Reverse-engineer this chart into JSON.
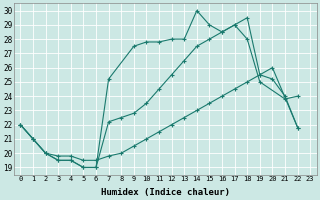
{
  "xlabel": "Humidex (Indice chaleur)",
  "bg_color": "#cce8e4",
  "grid_color": "#b0d8d0",
  "line_color": "#1a7a6e",
  "xlim": [
    -0.5,
    23.5
  ],
  "ylim": [
    18.5,
    30.5
  ],
  "yticks": [
    19,
    20,
    21,
    22,
    23,
    24,
    25,
    26,
    27,
    28,
    29,
    30
  ],
  "xticks": [
    0,
    1,
    2,
    3,
    4,
    5,
    6,
    7,
    8,
    9,
    10,
    11,
    12,
    13,
    14,
    15,
    16,
    17,
    18,
    19,
    20,
    21,
    22,
    23
  ],
  "s1_x": [
    0,
    1,
    2,
    3,
    4,
    5,
    6,
    7,
    9,
    10,
    11,
    12,
    13,
    14,
    15,
    16,
    17,
    18,
    19,
    21,
    22
  ],
  "s1_y": [
    22,
    21,
    20,
    19.5,
    19.5,
    19,
    19,
    25.2,
    27.5,
    27.8,
    27.8,
    28.0,
    28.0,
    30.0,
    29.0,
    28.5,
    29.0,
    28.0,
    25.0,
    23.8,
    24.0
  ],
  "s2_x": [
    0,
    1,
    2,
    3,
    4,
    5,
    6,
    7,
    8,
    9,
    10,
    11,
    12,
    13,
    14,
    15,
    16,
    17,
    18,
    19,
    20,
    21,
    22
  ],
  "s2_y": [
    22,
    21,
    20,
    19.5,
    19.5,
    19,
    19,
    22.2,
    22.5,
    22.8,
    23.5,
    24.5,
    25.5,
    26.5,
    27.5,
    28.0,
    28.5,
    29.0,
    29.5,
    25.5,
    25.2,
    24.0,
    21.8
  ],
  "s3_x": [
    0,
    1,
    2,
    3,
    4,
    5,
    6,
    7,
    8,
    9,
    10,
    11,
    12,
    13,
    14,
    15,
    16,
    17,
    18,
    19,
    20,
    22
  ],
  "s3_y": [
    22,
    21,
    20.0,
    19.8,
    19.8,
    19.5,
    19.5,
    19.8,
    20.0,
    20.5,
    21.0,
    21.5,
    22.0,
    22.5,
    23.0,
    23.5,
    24.0,
    24.5,
    25.0,
    25.5,
    26.0,
    21.8
  ]
}
